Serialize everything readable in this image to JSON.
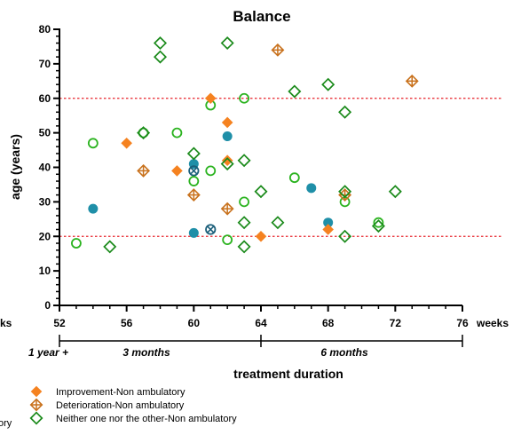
{
  "chart_data": {
    "type": "scatter",
    "title": "Balance",
    "xlabel": "treatment duration",
    "ylabel": "age (years)",
    "x_unit_label": "weeks",
    "xlim": [
      52,
      76
    ],
    "ylim": [
      0,
      80
    ],
    "x_ticks": [
      52,
      56,
      60,
      64,
      68,
      72,
      76
    ],
    "y_ticks": [
      0,
      10,
      20,
      30,
      40,
      50,
      60,
      70,
      80
    ],
    "reference_lines": [
      {
        "axis": "y",
        "value": 60,
        "color": "#e8222a",
        "style": "dotted"
      },
      {
        "axis": "y",
        "value": 20,
        "color": "#e8222a",
        "style": "dotted"
      }
    ],
    "duration_brackets": [
      {
        "label": "1 year +",
        "from": 52,
        "to": 52
      },
      {
        "label": "3 months",
        "from": 52,
        "to": 64
      },
      {
        "label": "6 months",
        "from": 64,
        "to": 76
      }
    ],
    "grid": false,
    "legend_position": "bottom-left",
    "series": [
      {
        "name": "",
        "marker": "filled-circle",
        "color": "#1f8fa8",
        "points": [
          [
            54,
            28
          ],
          [
            60,
            41
          ],
          [
            60,
            21
          ],
          [
            62,
            49
          ],
          [
            67,
            34
          ],
          [
            68,
            24
          ]
        ]
      },
      {
        "name": "",
        "marker": "crossed-circle",
        "color": "#1b5f7a",
        "points": [
          [
            60,
            39
          ],
          [
            61,
            22
          ]
        ]
      },
      {
        "name": "",
        "marker": "open-circle",
        "color": "#2bb31f",
        "points": [
          [
            53,
            18
          ],
          [
            54,
            47
          ],
          [
            57,
            50
          ],
          [
            59,
            50
          ],
          [
            60,
            36
          ],
          [
            61,
            58
          ],
          [
            61,
            39
          ],
          [
            62,
            19
          ],
          [
            63,
            60
          ],
          [
            63,
            30
          ],
          [
            66,
            37
          ],
          [
            69,
            30
          ],
          [
            71,
            24
          ]
        ]
      },
      {
        "name": "Improvement-Non ambulatory",
        "marker": "filled-diamond",
        "color": "#f58220",
        "points": [
          [
            56,
            47
          ],
          [
            59,
            39
          ],
          [
            61,
            60
          ],
          [
            62,
            53
          ],
          [
            62,
            42
          ],
          [
            64,
            20
          ],
          [
            68,
            22
          ]
        ]
      },
      {
        "name": "Deterioration-Non ambulatory",
        "marker": "crossed-diamond",
        "color": "#c8711c",
        "points": [
          [
            57,
            39
          ],
          [
            60,
            32
          ],
          [
            62,
            28
          ],
          [
            65,
            74
          ],
          [
            69,
            32
          ],
          [
            73,
            65
          ]
        ]
      },
      {
        "name": "Neither one nor the other-Non ambulatory",
        "marker": "open-diamond",
        "color": "#1a8a1a",
        "points": [
          [
            55,
            17
          ],
          [
            57,
            50
          ],
          [
            58,
            76
          ],
          [
            58,
            72
          ],
          [
            60,
            44
          ],
          [
            62,
            76
          ],
          [
            62,
            41
          ],
          [
            63,
            42
          ],
          [
            63,
            24
          ],
          [
            63,
            17
          ],
          [
            64,
            33
          ],
          [
            65,
            24
          ],
          [
            66,
            62
          ],
          [
            68,
            64
          ],
          [
            69,
            56
          ],
          [
            69,
            33
          ],
          [
            69,
            20
          ],
          [
            71,
            23
          ],
          [
            72,
            33
          ]
        ]
      }
    ]
  },
  "labels": {
    "left_cut_weeks": "ks",
    "left_cut_legend": "ory"
  }
}
